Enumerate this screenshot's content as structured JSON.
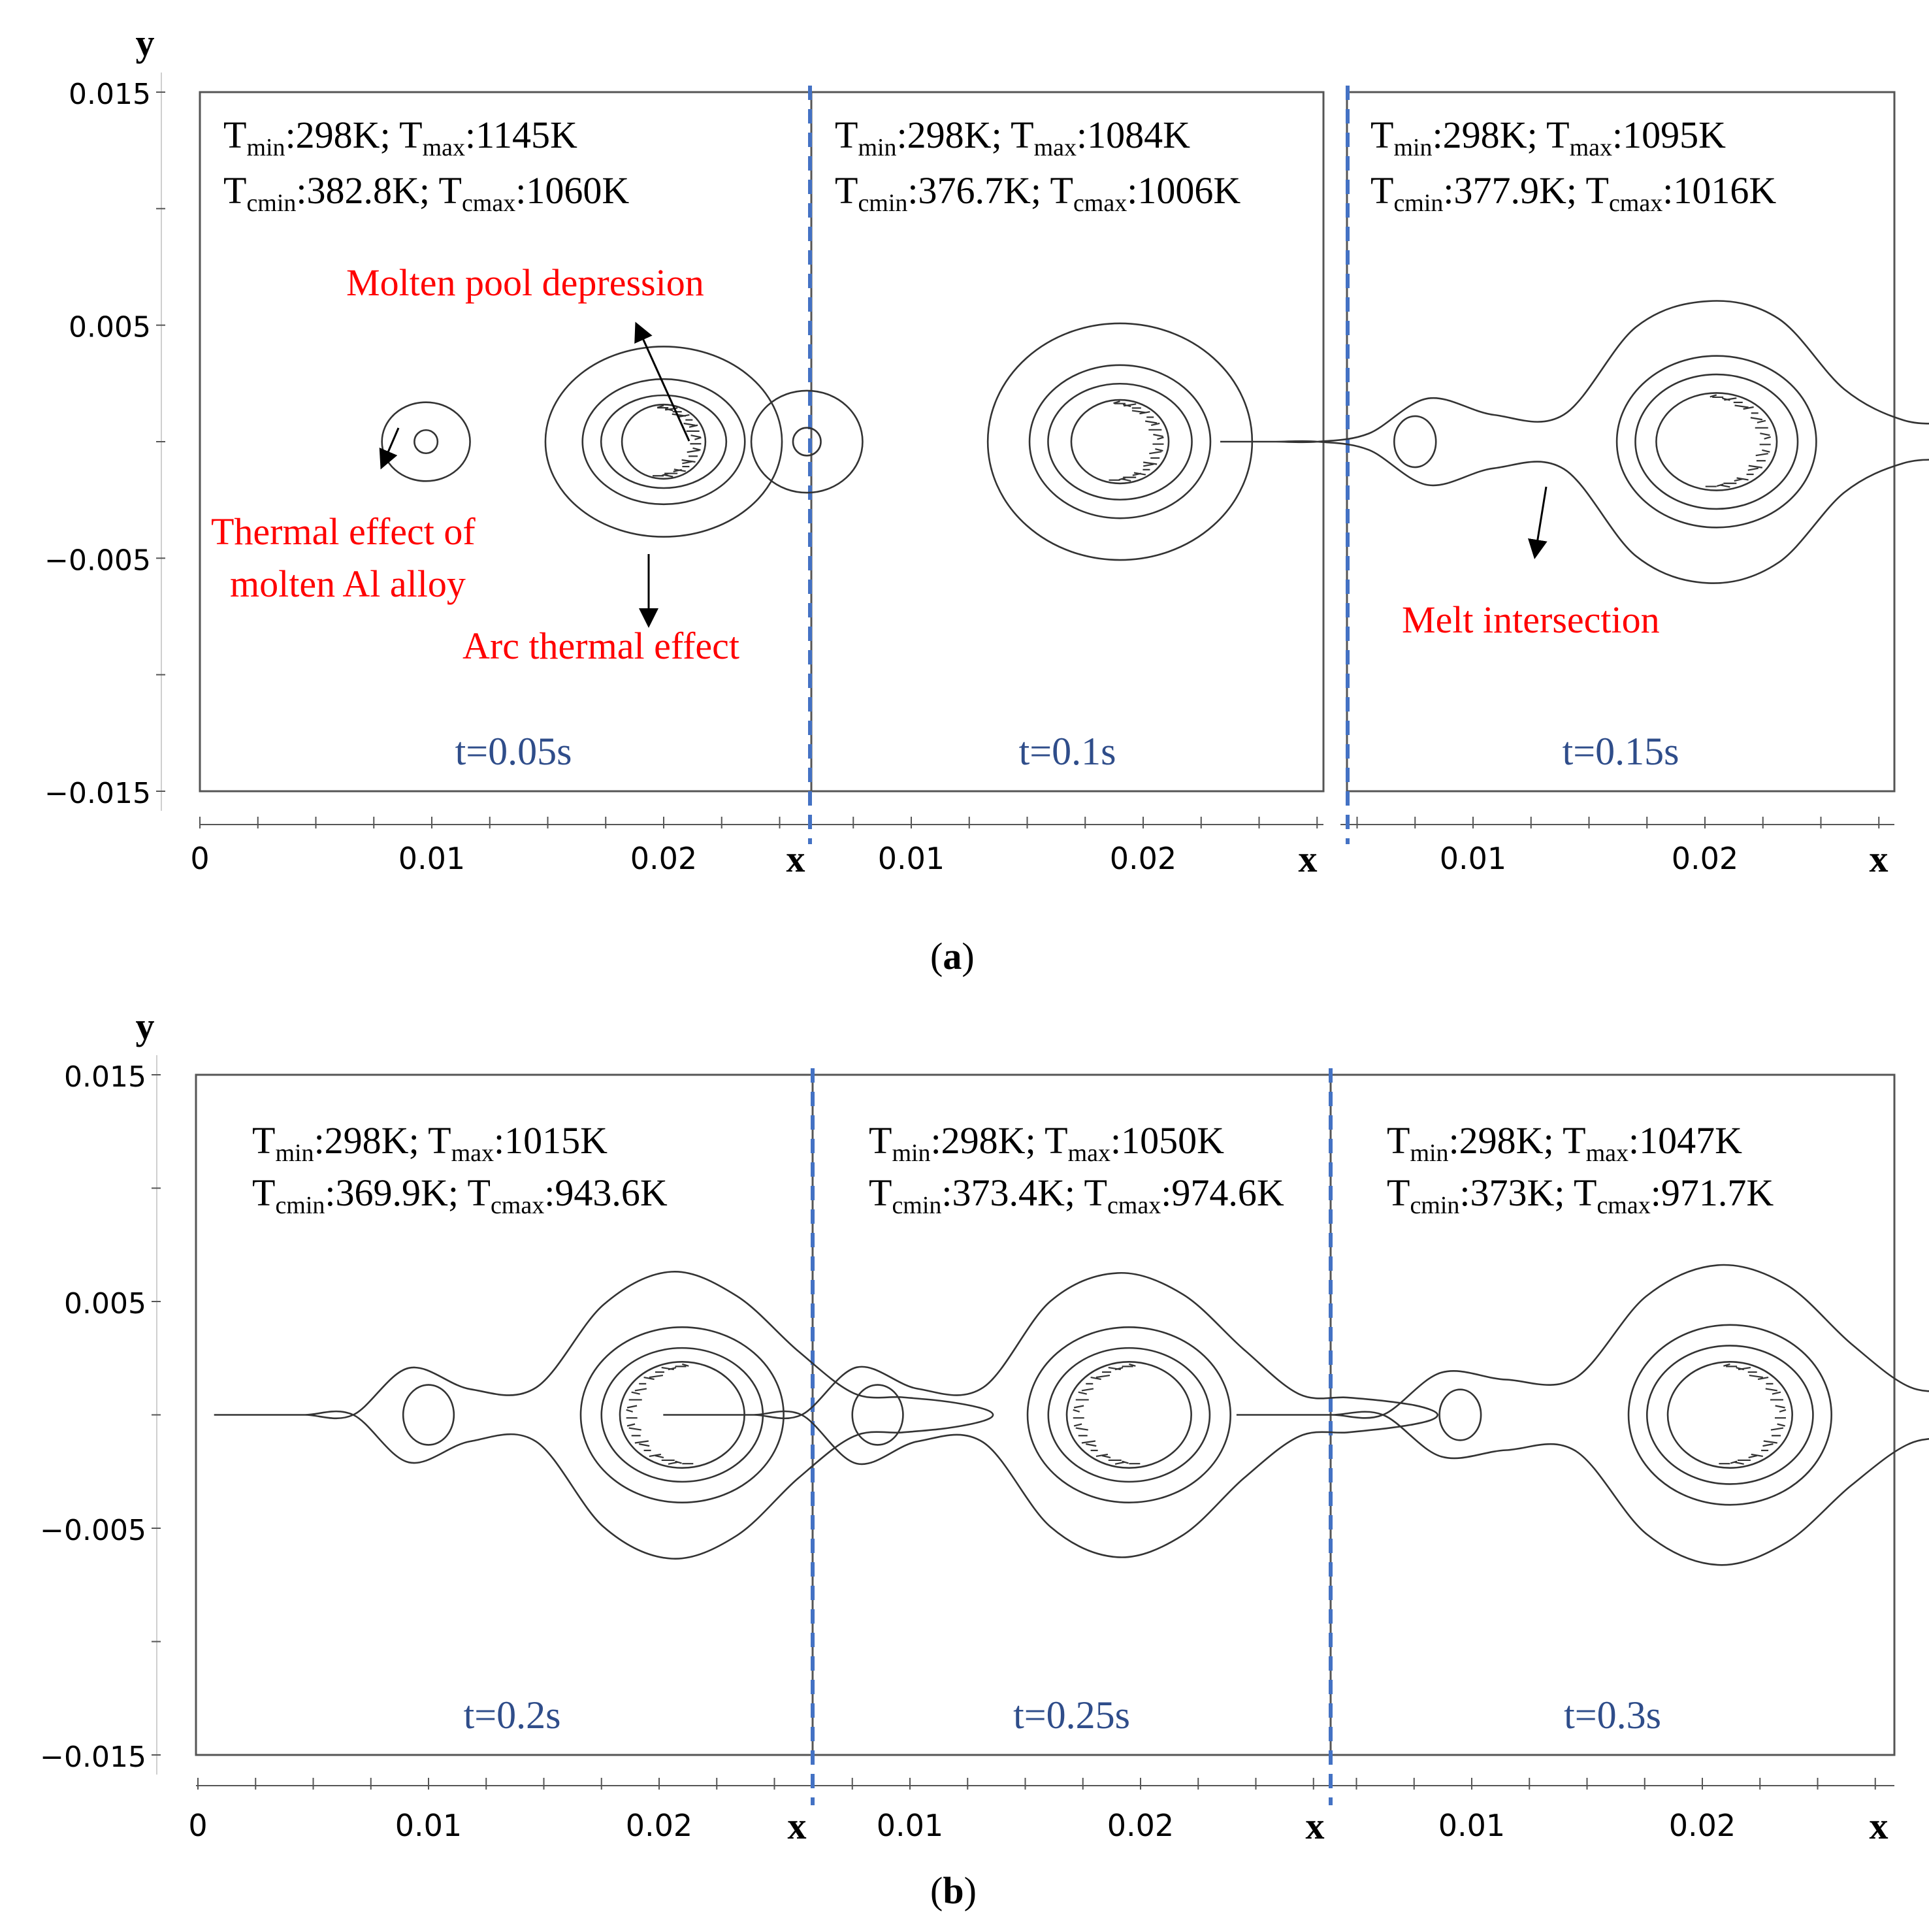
{
  "figure": {
    "caption_a": "(a)",
    "caption_a_letter": "a",
    "caption_b": "(b)",
    "caption_b_letter": "b",
    "colors": {
      "axis": "#555555",
      "contour": "#333333",
      "annotation": "#ff0000",
      "time_label": "#2f4d8a",
      "divider": "#4472c4",
      "text": "#000000"
    }
  },
  "axes": {
    "y_label": "y",
    "x_label": "x",
    "y_ticks": [
      "0.015",
      "0.005",
      "−0.005",
      "−0.015"
    ],
    "y_tick_values": [
      0.015,
      0.005,
      -0.005,
      -0.015
    ],
    "x_first_panel_ticks": [
      "0",
      "0.01",
      "0.02"
    ],
    "x_other_panel_ticks": [
      "0.01",
      "0.02"
    ]
  },
  "chart_data": {
    "type": "contour",
    "xlabel": "x",
    "ylabel": "y",
    "ylim": [
      -0.015,
      0.015
    ],
    "rows": [
      {
        "id": "a",
        "panels": [
          {
            "time": "t=0.05s",
            "Tmin": "298K",
            "Tmax": "1145K",
            "Tcmin": "382.8K",
            "Tcmax": "1060K"
          },
          {
            "time": "t=0.1s",
            "Tmin": "298K",
            "Tmax": "1084K",
            "Tcmin": "376.7K",
            "Tcmax": "1006K"
          },
          {
            "time": "t=0.15s",
            "Tmin": "298K",
            "Tmax": "1095K",
            "Tcmin": "377.9K",
            "Tcmax": "1016K"
          }
        ]
      },
      {
        "id": "b",
        "panels": [
          {
            "time": "t=0.2s",
            "Tmin": "298K",
            "Tmax": "1015K",
            "Tcmin": "369.9K",
            "Tcmax": "943.6K"
          },
          {
            "time": "t=0.25s",
            "Tmin": "298K",
            "Tmax": "1050K",
            "Tcmin": "373.4K",
            "Tcmax": "974.6K"
          },
          {
            "time": "t=0.3s",
            "Tmin": "298K",
            "Tmax": "1047K",
            "Tcmin": "373K",
            "Tcmax": "971.7K"
          }
        ]
      }
    ],
    "annotations": {
      "molten_pool": "Molten pool depression",
      "thermal_effect_line1": "Thermal effect of",
      "thermal_effect_line2": "molten Al alloy",
      "arc_effect": "Arc thermal effect",
      "melt_intersection": "Melt intersection"
    },
    "temp_labels": {
      "T": "T",
      "min": "min",
      "max": "max",
      "cmin": "cmin",
      "cmax": "cmax"
    }
  }
}
